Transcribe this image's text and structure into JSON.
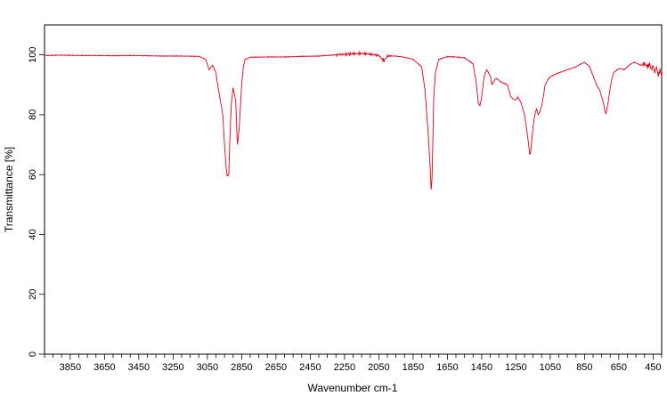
{
  "chart_data": {
    "type": "line",
    "title": "",
    "xlabel": "Wavenumber cm-1",
    "ylabel": "Transmittance [%]",
    "xlim": [
      4000,
      400
    ],
    "ylim": [
      0,
      110
    ],
    "x_ticks": [
      3850,
      3650,
      3450,
      3250,
      3050,
      2850,
      2650,
      2450,
      2250,
      2050,
      1850,
      1650,
      1450,
      1250,
      1050,
      850,
      650,
      450
    ],
    "y_ticks": [
      0,
      20,
      40,
      60,
      80,
      100
    ],
    "grid": false,
    "legend": "none",
    "series": [
      {
        "color": "#e0001a",
        "x": [
          4000,
          3900,
          3800,
          3700,
          3600,
          3500,
          3400,
          3300,
          3200,
          3100,
          3060,
          3040,
          3020,
          3000,
          2990,
          2975,
          2960,
          2950,
          2940,
          2935,
          2925,
          2920,
          2910,
          2900,
          2885,
          2875,
          2865,
          2855,
          2850,
          2840,
          2830,
          2800,
          2700,
          2600,
          2500,
          2400,
          2300,
          2200,
          2150,
          2100,
          2050,
          2020,
          2000,
          1950,
          1900,
          1850,
          1800,
          1780,
          1760,
          1750,
          1745,
          1740,
          1735,
          1730,
          1720,
          1700,
          1650,
          1600,
          1550,
          1500,
          1480,
          1470,
          1460,
          1450,
          1440,
          1430,
          1420,
          1400,
          1390,
          1380,
          1370,
          1360,
          1340,
          1300,
          1280,
          1260,
          1250,
          1240,
          1220,
          1200,
          1180,
          1170,
          1165,
          1160,
          1150,
          1140,
          1130,
          1120,
          1110,
          1100,
          1090,
          1080,
          1060,
          1040,
          1000,
          950,
          900,
          870,
          850,
          820,
          800,
          780,
          760,
          740,
          730,
          725,
          720,
          715,
          710,
          700,
          690,
          680,
          660,
          640,
          620,
          600,
          580,
          560,
          540,
          520,
          500,
          480,
          470,
          460,
          450,
          440,
          430,
          420,
          410,
          400
        ],
        "y": [
          99.8,
          99.9,
          99.8,
          99.8,
          99.7,
          99.8,
          99.7,
          99.6,
          99.6,
          99.5,
          98.5,
          95,
          96.5,
          94,
          90,
          85,
          80,
          70,
          62,
          59.5,
          60,
          70,
          84,
          89,
          85,
          70,
          75,
          85,
          90,
          96,
          98.5,
          99.2,
          99.3,
          99.3,
          99.5,
          99.6,
          100,
          100.3,
          100.5,
          100.2,
          99.8,
          98,
          99.6,
          99.6,
          99.2,
          98.5,
          96,
          88,
          72,
          62,
          55,
          58,
          70,
          85,
          94,
          98.5,
          99.4,
          99.3,
          99,
          97,
          90,
          84,
          83,
          86,
          91,
          94,
          95,
          93,
          90,
          91,
          92,
          92,
          91,
          90,
          86,
          85,
          85,
          86,
          84,
          80,
          72,
          67,
          67,
          70,
          76,
          80,
          82,
          80,
          81,
          83,
          86,
          90,
          92,
          93,
          94,
          95,
          96,
          97,
          97.5,
          96,
          93,
          90,
          88,
          84,
          81,
          80.5,
          81.5,
          83,
          85,
          89,
          92,
          94,
          95,
          95.5,
          95,
          96,
          97,
          97.5,
          97,
          96.5,
          97,
          96,
          97,
          95,
          96.5,
          94,
          96,
          93,
          95,
          93
        ]
      }
    ]
  }
}
